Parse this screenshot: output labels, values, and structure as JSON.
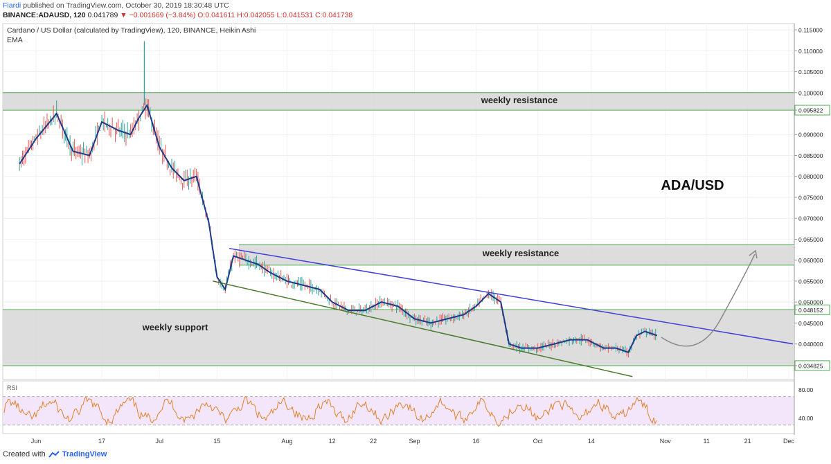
{
  "header": {
    "author": "Fiardi",
    "published_text": "published on TradingView.com, October 30, 2019 18:30:48 UTC",
    "symbol": "BINANCE:ADAUSD, 120",
    "last": "0.041789",
    "change_arrow": "▼",
    "change": "−0.001669 (−3.84%)",
    "ohlc": "O:0.041611 H:0.042055 L:0.041531 C:0.041738"
  },
  "legend": {
    "title": "Cardano / US Dollar (calculated by TradingView), 120, BINANCE, Heikin Ashi",
    "indicator": "EMA",
    "rsi_label": "RSI"
  },
  "annotations": {
    "resistance_top": "weekly resistance",
    "resistance_mid": "weekly resistance",
    "support": "weekly support",
    "pair_title": "ADA/USD"
  },
  "footer": {
    "created_with": "Created with",
    "brand": "TradingView"
  },
  "colors": {
    "zone_fill": "#d9d9d9",
    "zone_border": "#4caf50",
    "blue_trendline": "#3f3fd8",
    "green_trendline": "#4a7a2a",
    "ema": "#1a3a8a",
    "candle_up": "#26a69a",
    "candle_down": "#ef5350",
    "rsi_line": "#e0822a",
    "rsi_band": "#f3e6fa",
    "projection_arrow": "#888888"
  },
  "chart_data": [
    {
      "type": "line",
      "description_label": "Heikin Ashi price with EMA",
      "x_ticks": [
        "Jun",
        "17",
        "Jul",
        "15",
        "Aug",
        "12",
        "22",
        "Sep",
        "16",
        "Oct",
        "14",
        "Nov",
        "11",
        "21",
        "Dec"
      ],
      "y_ticks": [
        "0.115000",
        "0.110000",
        "0.105000",
        "0.100000",
        "0.095822",
        "0.090000",
        "0.085000",
        "0.080000",
        "0.075000",
        "0.070000",
        "0.065000",
        "0.060000",
        "0.055000",
        "0.050000",
        "0.048152",
        "0.045000",
        "0.040000",
        "0.034825"
      ],
      "ylim": [
        0.0315,
        0.1165
      ],
      "x": [
        "May 28",
        "Jun 1",
        "Jun 6",
        "Jun 10",
        "Jun 14",
        "Jun 17",
        "Jun 21",
        "Jun 24",
        "Jun 26",
        "Jun 28",
        "Jul 1",
        "Jul 4",
        "Jul 7",
        "Jul 10",
        "Jul 13",
        "Jul 15",
        "Jul 17",
        "Jul 19",
        "Jul 22",
        "Jul 25",
        "Jul 28",
        "Aug 1",
        "Aug 5",
        "Aug 9",
        "Aug 12",
        "Aug 16",
        "Aug 20",
        "Aug 24",
        "Aug 28",
        "Sep 1",
        "Sep 5",
        "Sep 9",
        "Sep 13",
        "Sep 16",
        "Sep 19",
        "Sep 22",
        "Sep 24",
        "Sep 27",
        "Oct 1",
        "Oct 5",
        "Oct 9",
        "Oct 13",
        "Oct 17",
        "Oct 20",
        "Oct 23",
        "Oct 25",
        "Oct 27",
        "Oct 30"
      ],
      "series": [
        {
          "name": "",
          "values": [
            0.083,
            0.089,
            0.095,
            0.086,
            0.085,
            0.093,
            0.091,
            0.09,
            0.094,
            0.097,
            0.087,
            0.082,
            0.079,
            0.08,
            0.069,
            0.056,
            0.053,
            0.061,
            0.06,
            0.059,
            0.057,
            0.055,
            0.054,
            0.053,
            0.05,
            0.048,
            0.048,
            0.05,
            0.049,
            0.046,
            0.045,
            0.046,
            0.047,
            0.049,
            0.052,
            0.05,
            0.04,
            0.039,
            0.039,
            0.04,
            0.041,
            0.041,
            0.039,
            0.039,
            0.038,
            0.042,
            0.043,
            0.042
          ]
        }
      ],
      "zones": [
        {
          "label": "weekly resistance",
          "from": 0.0958,
          "to": 0.1
        },
        {
          "label": "weekly resistance",
          "from": 0.0588,
          "to": 0.0637
        },
        {
          "label": "weekly support",
          "from": 0.0348,
          "to": 0.0482
        }
      ],
      "trendlines": [
        {
          "name": "upper",
          "from": {
            "x": "Jul 18",
            "y": 0.0628
          },
          "to": {
            "x": "Dec 2",
            "y": 0.04
          }
        },
        {
          "name": "lower",
          "from": {
            "x": "Jul 14",
            "y": 0.055
          },
          "to": {
            "x": "Oct 24",
            "y": 0.0322
          }
        }
      ]
    },
    {
      "type": "line",
      "description_label": "RSI",
      "y_ticks": [
        "80.00",
        "40.00"
      ],
      "ylim": [
        20,
        90
      ],
      "bands": [
        30,
        70
      ]
    }
  ]
}
